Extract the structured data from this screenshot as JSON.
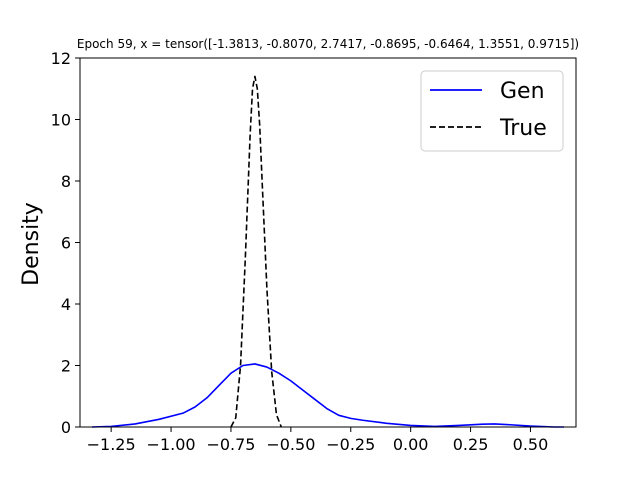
{
  "chart_data": {
    "type": "line",
    "title": "Epoch 59, x = tensor([-1.3813, -0.8070,  2.7417, -0.8695, -0.6464,  1.3551,  0.9715])",
    "xlabel": "",
    "ylabel": "Density",
    "xlim": [
      -1.38,
      0.69
    ],
    "ylim": [
      0,
      12
    ],
    "xticks": [
      -1.25,
      -1.0,
      -0.75,
      -0.5,
      -0.25,
      0.0,
      0.25,
      0.5
    ],
    "xtick_labels": [
      "−1.25",
      "−1.00",
      "−0.75",
      "−0.50",
      "−0.25",
      "0.00",
      "0.25",
      "0.50"
    ],
    "yticks": [
      0,
      2,
      4,
      6,
      8,
      10,
      12
    ],
    "ytick_labels": [
      "0",
      "2",
      "4",
      "6",
      "8",
      "10",
      "12"
    ],
    "grid": false,
    "legend": "upper right",
    "series": [
      {
        "name": "Gen",
        "color": "#0000ff",
        "style": "solid",
        "x": [
          -1.33,
          -1.25,
          -1.15,
          -1.05,
          -0.95,
          -0.9,
          -0.85,
          -0.8,
          -0.75,
          -0.7,
          -0.65,
          -0.6,
          -0.55,
          -0.5,
          -0.45,
          -0.4,
          -0.35,
          -0.3,
          -0.25,
          -0.2,
          -0.1,
          0.0,
          0.1,
          0.2,
          0.3,
          0.35,
          0.4,
          0.5,
          0.6,
          0.64
        ],
        "y": [
          0.0,
          0.02,
          0.1,
          0.25,
          0.45,
          0.65,
          0.95,
          1.35,
          1.75,
          2.0,
          2.05,
          1.95,
          1.75,
          1.5,
          1.2,
          0.9,
          0.6,
          0.38,
          0.28,
          0.22,
          0.12,
          0.05,
          0.02,
          0.05,
          0.09,
          0.1,
          0.08,
          0.03,
          0.0,
          0.0
        ]
      },
      {
        "name": "True",
        "color": "#000000",
        "style": "dashed",
        "x": [
          -0.75,
          -0.73,
          -0.71,
          -0.69,
          -0.67,
          -0.66,
          -0.65,
          -0.64,
          -0.63,
          -0.62,
          -0.6,
          -0.58,
          -0.56,
          -0.54
        ],
        "y": [
          0.0,
          0.3,
          2.0,
          5.5,
          9.5,
          11.0,
          11.4,
          11.0,
          9.8,
          8.0,
          4.5,
          1.8,
          0.4,
          0.0
        ]
      }
    ]
  }
}
